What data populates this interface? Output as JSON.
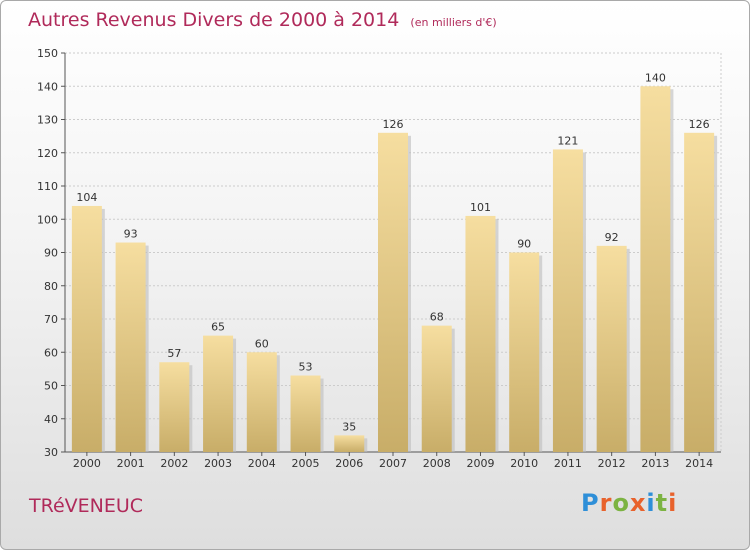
{
  "header": {
    "title": "Autres Revenus Divers de 2000 à 2014",
    "subtitle": "(en milliers d'€)"
  },
  "footer": {
    "city": "TRéVENEUC",
    "brand": "Proxiti",
    "brand_colors": [
      "#2e8fd8",
      "#e8622c",
      "#7cb342",
      "#e8622c",
      "#2e8fd8",
      "#7cb342",
      "#e8622c"
    ]
  },
  "colors": {
    "title": "#b02a5a",
    "bar_top": "#f6dea0",
    "bar_bottom": "#c8ad68",
    "bar_shadow": "#bdbdbd",
    "grid": "#cccccc"
  },
  "chart_data": {
    "type": "bar",
    "title": "Autres Revenus Divers de 2000 à 2014",
    "subtitle": "(en milliers d'€)",
    "xlabel": "",
    "ylabel": "",
    "categories": [
      "2000",
      "2001",
      "2002",
      "2003",
      "2004",
      "2005",
      "2006",
      "2007",
      "2008",
      "2009",
      "2010",
      "2011",
      "2012",
      "2013",
      "2014"
    ],
    "values": [
      104,
      93,
      57,
      65,
      60,
      53,
      35,
      126,
      68,
      101,
      90,
      121,
      92,
      140,
      126
    ],
    "ylim": [
      30,
      150
    ],
    "yticks": [
      30,
      40,
      50,
      60,
      70,
      80,
      90,
      100,
      110,
      120,
      130,
      140,
      150
    ],
    "grid": "horizontal",
    "legend": "none"
  }
}
